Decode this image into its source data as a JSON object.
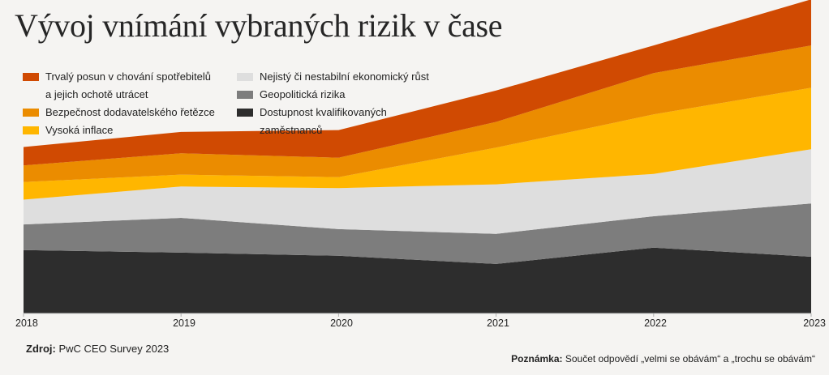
{
  "chart_data": {
    "type": "area",
    "stacked": true,
    "title": "Vývoj vnímání vybraných rizik v čase",
    "x": [
      "2018",
      "2019",
      "2020",
      "2021",
      "2022",
      "2023"
    ],
    "ylim": [
      0,
      100
    ],
    "series": [
      {
        "name": "Dostupnost kvalifikovaných zaměstnanců",
        "color": "#2d2d2d",
        "values": [
          20.2,
          19.4,
          18.4,
          15.8,
          21.0,
          18.1
        ]
      },
      {
        "name": "Geopolitická rizika",
        "color": "#7d7d7d",
        "values": [
          8.2,
          11.1,
          8.5,
          9.6,
          10.0,
          17.0
        ]
      },
      {
        "name": "Nejistý či nestabilní ekonomický růst",
        "color": "#dedede",
        "values": [
          7.9,
          10.0,
          13.1,
          15.8,
          13.5,
          17.3
        ]
      },
      {
        "name": "Vysoká inflace",
        "color": "#ffb600",
        "values": [
          5.6,
          3.8,
          3.5,
          11.7,
          19.0,
          19.6
        ]
      },
      {
        "name": "Bezpečnost dodavatelského řetězce",
        "color": "#eb8c00",
        "values": [
          5.3,
          6.8,
          6.2,
          8.2,
          13.2,
          13.5
        ]
      },
      {
        "name": "Trvalý posun v chování spotřebitelů a jejich ochotě utrácet",
        "color": "#d04a02",
        "values": [
          5.9,
          6.8,
          8.8,
          10.0,
          8.8,
          14.7
        ]
      }
    ]
  },
  "legend_col1": [
    {
      "line1": "Trvalý posun v chování spotřebitelů",
      "line2": "a jejich ochotě utrácet",
      "color": "#d04a02"
    },
    {
      "line1": "Bezpečnost dodavatelského řetězce",
      "line2": "",
      "color": "#eb8c00"
    },
    {
      "line1": "Vysoká inflace",
      "line2": "",
      "color": "#ffb600"
    }
  ],
  "legend_col2": [
    {
      "line1": "Nejistý či nestabilní ekonomický růst",
      "line2": "",
      "color": "#dedede"
    },
    {
      "line1": "Geopolitická rizika",
      "line2": "",
      "color": "#7d7d7d"
    },
    {
      "line1": "Dostupnost kvalifikovaných",
      "line2": "zaměstnanců",
      "color": "#2d2d2d"
    }
  ],
  "source": {
    "label": "Zdroj:",
    "text": " PwC CEO Survey 2023"
  },
  "note": {
    "label": "Poznámka:",
    "text": " Součet odpovědí „velmi se obávám“ a „trochu se obávám“"
  }
}
